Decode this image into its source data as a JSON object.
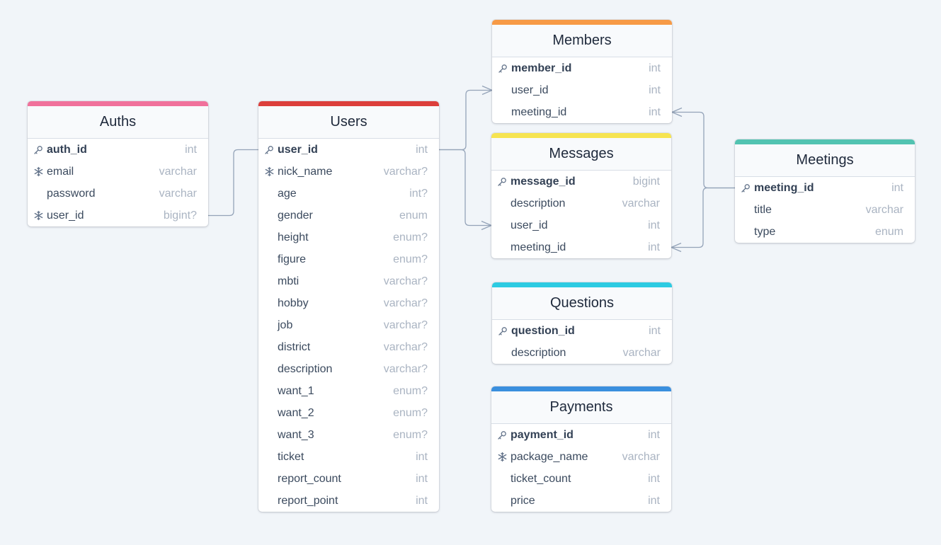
{
  "tables": [
    {
      "id": "auths",
      "name": "Auths",
      "color": "#f0719b",
      "fields": [
        {
          "name": "auth_id",
          "type": "int",
          "icon": "key-icon",
          "pk": true
        },
        {
          "name": "email",
          "type": "varchar",
          "icon": "snowflake-icon",
          "pk": false
        },
        {
          "name": "password",
          "type": "varchar",
          "icon": "",
          "pk": false
        },
        {
          "name": "user_id",
          "type": "bigint?",
          "icon": "snowflake-icon",
          "pk": false
        }
      ]
    },
    {
      "id": "users",
      "name": "Users",
      "color": "#dc3f3b",
      "fields": [
        {
          "name": "user_id",
          "type": "int",
          "icon": "key-icon",
          "pk": true
        },
        {
          "name": "nick_name",
          "type": "varchar?",
          "icon": "snowflake-icon",
          "pk": false
        },
        {
          "name": "age",
          "type": "int?",
          "icon": "",
          "pk": false
        },
        {
          "name": "gender",
          "type": "enum",
          "icon": "",
          "pk": false
        },
        {
          "name": "height",
          "type": "enum?",
          "icon": "",
          "pk": false
        },
        {
          "name": "figure",
          "type": "enum?",
          "icon": "",
          "pk": false
        },
        {
          "name": "mbti",
          "type": "varchar?",
          "icon": "",
          "pk": false
        },
        {
          "name": "hobby",
          "type": "varchar?",
          "icon": "",
          "pk": false
        },
        {
          "name": "job",
          "type": "varchar?",
          "icon": "",
          "pk": false
        },
        {
          "name": "district",
          "type": "varchar?",
          "icon": "",
          "pk": false
        },
        {
          "name": "description",
          "type": "varchar?",
          "icon": "",
          "pk": false
        },
        {
          "name": "want_1",
          "type": "enum?",
          "icon": "",
          "pk": false
        },
        {
          "name": "want_2",
          "type": "enum?",
          "icon": "",
          "pk": false
        },
        {
          "name": "want_3",
          "type": "enum?",
          "icon": "",
          "pk": false
        },
        {
          "name": "ticket",
          "type": "int",
          "icon": "",
          "pk": false
        },
        {
          "name": "report_count",
          "type": "int",
          "icon": "",
          "pk": false
        },
        {
          "name": "report_point",
          "type": "int",
          "icon": "",
          "pk": false
        }
      ]
    },
    {
      "id": "members",
      "name": "Members",
      "color": "#f79a46",
      "fields": [
        {
          "name": "member_id",
          "type": "int",
          "icon": "key-icon",
          "pk": true
        },
        {
          "name": "user_id",
          "type": "int",
          "icon": "",
          "pk": false
        },
        {
          "name": "meeting_id",
          "type": "int",
          "icon": "",
          "pk": false
        }
      ]
    },
    {
      "id": "messages",
      "name": "Messages",
      "color": "#f6e451",
      "fields": [
        {
          "name": "message_id",
          "type": "bigint",
          "icon": "key-icon",
          "pk": true
        },
        {
          "name": "description",
          "type": "varchar",
          "icon": "",
          "pk": false
        },
        {
          "name": "user_id",
          "type": "int",
          "icon": "",
          "pk": false
        },
        {
          "name": "meeting_id",
          "type": "int",
          "icon": "",
          "pk": false
        }
      ]
    },
    {
      "id": "questions",
      "name": "Questions",
      "color": "#2dcbe2",
      "fields": [
        {
          "name": "question_id",
          "type": "int",
          "icon": "key-icon",
          "pk": true
        },
        {
          "name": "description",
          "type": "varchar",
          "icon": "",
          "pk": false
        }
      ]
    },
    {
      "id": "payments",
      "name": "Payments",
      "color": "#3a8fde",
      "fields": [
        {
          "name": "payment_id",
          "type": "int",
          "icon": "key-icon",
          "pk": true
        },
        {
          "name": "package_name",
          "type": "varchar",
          "icon": "snowflake-icon",
          "pk": false
        },
        {
          "name": "ticket_count",
          "type": "int",
          "icon": "",
          "pk": false
        },
        {
          "name": "price",
          "type": "int",
          "icon": "",
          "pk": false
        }
      ]
    },
    {
      "id": "meetings",
      "name": "Meetings",
      "color": "#52c3b1",
      "fields": [
        {
          "name": "meeting_id",
          "type": "int",
          "icon": "key-icon",
          "pk": true
        },
        {
          "name": "title",
          "type": "varchar",
          "icon": "",
          "pk": false
        },
        {
          "name": "type",
          "type": "enum",
          "icon": "",
          "pk": false
        }
      ]
    }
  ],
  "relations": [
    {
      "from_table": "auths",
      "from_field": "user_id",
      "to_table": "users",
      "to_field": "user_id",
      "cardinality": "one-to-one"
    },
    {
      "from_table": "users",
      "from_field": "user_id",
      "to_table": "members",
      "to_field": "user_id",
      "cardinality": "one-to-many"
    },
    {
      "from_table": "users",
      "from_field": "user_id",
      "to_table": "messages",
      "to_field": "user_id",
      "cardinality": "one-to-many"
    },
    {
      "from_table": "meetings",
      "from_field": "meeting_id",
      "to_table": "members",
      "to_field": "meeting_id",
      "cardinality": "one-to-many"
    },
    {
      "from_table": "meetings",
      "from_field": "meeting_id",
      "to_table": "messages",
      "to_field": "meeting_id",
      "cardinality": "one-to-many"
    }
  ]
}
